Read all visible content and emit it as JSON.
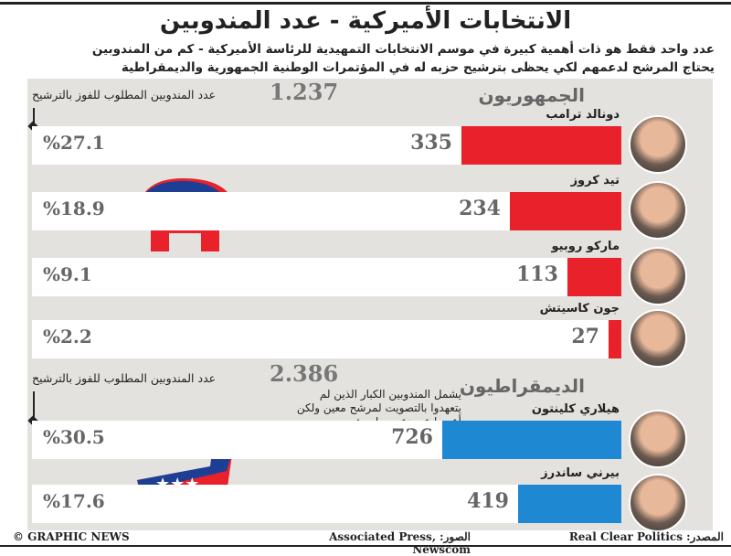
{
  "title": "الانتخابات الأميركية - عدد المندوبين",
  "subtitle_1": "عدد واحد فقط هو ذات أهمية كبيرة في موسم الانتخابات التمهيدية للرئاسة الأميركية - كم من المندوبين",
  "subtitle_2": "يحتاج المرشح لدعمهم لكي يحظى بترشيح حزبه له في المؤتمرات الوطنية الجمهورية والديمقراطية",
  "required_label": "عدد المندوبين المطلوب للفوز بالترشيح",
  "superdelegate_note": "يشمل المندوبين الكبار الذين لم يتعهدوا بالتصويت لمرشح معين ولكن أعربوا عن دعمهم لمرشح",
  "footer": {
    "copyright": "© GRAPHIC NEWS",
    "photos": "الصور: Associated Press, Newscom",
    "source": "المصدر: Real Clear Politics"
  },
  "colors": {
    "republican": "#e8212b",
    "democrat": "#1e88d2"
  },
  "chart_data": {
    "type": "bar",
    "title": "الانتخابات الأميركية - عدد المندوبين",
    "parties": [
      {
        "name": "الجمهوريون",
        "required": 1237,
        "required_text": "1.237",
        "color": "#e8212b",
        "candidates": [
          {
            "name": "دونالد ترامب",
            "delegates": 335,
            "percent_text": "%27.1"
          },
          {
            "name": "تيد كروز",
            "delegates": 234,
            "percent_text": "%18.9"
          },
          {
            "name": "ماركو روبيو",
            "delegates": 113,
            "percent_text": "%9.1"
          },
          {
            "name": "جون كاسيتش",
            "delegates": 27,
            "percent_text": "%2.2"
          }
        ]
      },
      {
        "name": "الديمقراطيون",
        "required": 2386,
        "required_text": "2.386",
        "color": "#1e88d2",
        "candidates": [
          {
            "name": "هيلاري كلينتون",
            "delegates": 726,
            "percent_text": "%30.5"
          },
          {
            "name": "بيرني ساندرز",
            "delegates": 419,
            "percent_text": "%17.6"
          }
        ]
      }
    ]
  }
}
